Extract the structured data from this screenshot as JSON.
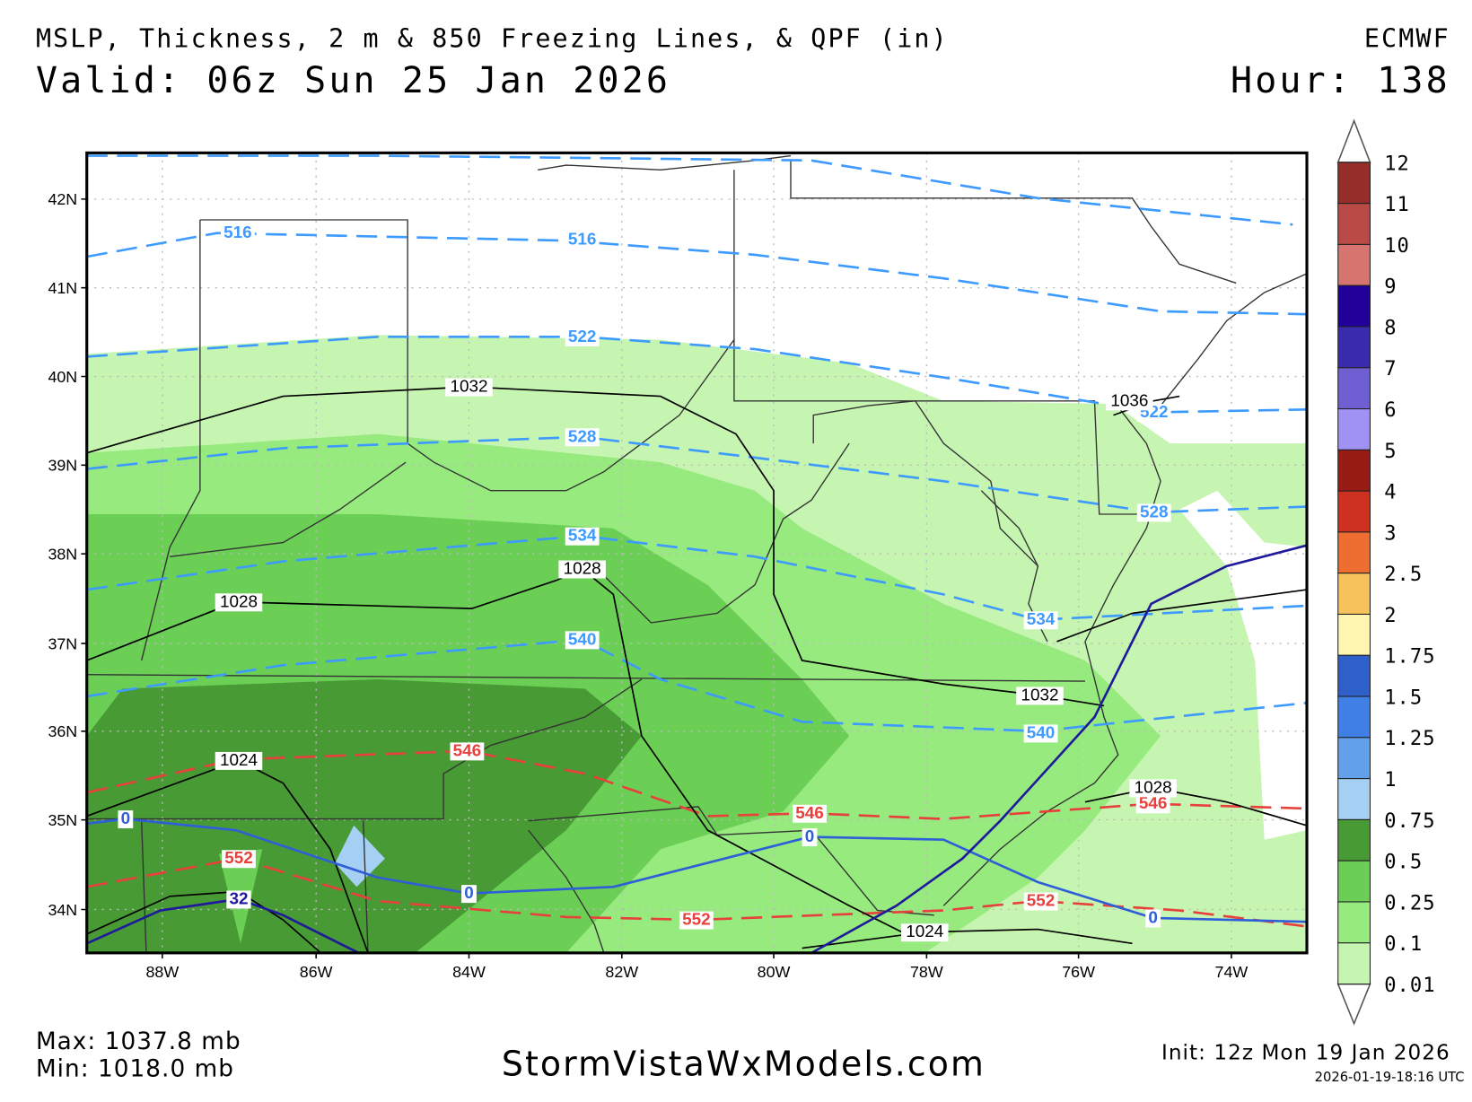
{
  "header": {
    "title": "MSLP, Thickness, 2 m & 850 Freezing Lines, & QPF (in)",
    "model": "ECMWF",
    "valid": "Valid: 06z Sun 25 Jan 2026",
    "hour": "Hour: 138"
  },
  "map": {
    "lat_labels": [
      "42N",
      "41N",
      "40N",
      "39N",
      "38N",
      "37N",
      "36N",
      "35N",
      "34N"
    ],
    "lon_labels": [
      "88W",
      "86W",
      "84W",
      "82W",
      "80W",
      "78W",
      "76W",
      "74W"
    ],
    "thickness_labels": [
      "516",
      "516",
      "522",
      "522",
      "528",
      "528",
      "534",
      "534",
      "540",
      "540"
    ],
    "warm_thickness_labels": [
      "546",
      "546",
      "546",
      "552",
      "552",
      "552"
    ],
    "isobar_labels": [
      "1032",
      "1032",
      "1036",
      "1028",
      "1028",
      "1028",
      "1024",
      "1024"
    ],
    "freezing_labels": [
      "0",
      "0",
      "0",
      "0",
      "32"
    ],
    "colors": {
      "thickness_cold": "#3d9aff",
      "thickness_warm": "#e8403c",
      "isobar": "#000000",
      "freezing_2m": "#2e5fd8",
      "freezing_850": "#1f1a9c"
    }
  },
  "colorbar": {
    "labels": [
      "12",
      "11",
      "10",
      "9",
      "8",
      "7",
      "6",
      "5",
      "4",
      "3",
      "2.5",
      "2",
      "1.75",
      "1.5",
      "1.25",
      "1",
      "0.75",
      "0.5",
      "0.25",
      "0.1",
      "0.01"
    ],
    "colors": [
      "#962d2a",
      "#b94a45",
      "#d67570",
      "#22009a",
      "#3a2aae",
      "#6e5fd2",
      "#a091f5",
      "#981b14",
      "#cf3120",
      "#ee6d30",
      "#f5c25c",
      "#fff6b1",
      "#2f5fc8",
      "#3f7fe6",
      "#62a0ec",
      "#a5d0f4",
      "#479a34",
      "#6bcf55",
      "#96ea7e",
      "#c6f5b1"
    ]
  },
  "footer": {
    "max": "Max: 1037.8 mb",
    "min": "Min: 1018.0 mb",
    "site": "StormVistaWxModels.com",
    "init": "Init: 12z Mon 19 Jan 2026",
    "generated": "2026-01-19-18:16 UTC"
  }
}
